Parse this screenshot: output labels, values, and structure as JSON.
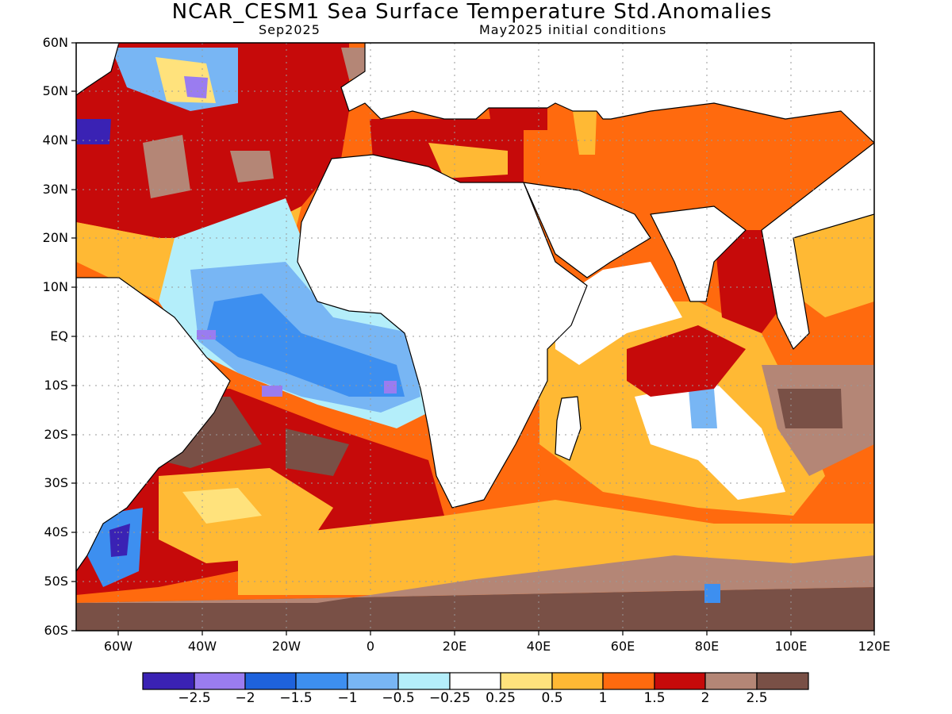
{
  "title": "NCAR_CESM1 Sea Surface Temperature Std.Anomalies",
  "valid_time": "Sep2025",
  "initial_conditions": "May2025 initial conditions",
  "map": {
    "lon_range": [
      -70,
      120
    ],
    "lat_range": [
      -60,
      60
    ],
    "lat_ticks": [
      "60N",
      "50N",
      "40N",
      "30N",
      "20N",
      "10N",
      "EQ",
      "10S",
      "20S",
      "30S",
      "40S",
      "50S",
      "60S"
    ],
    "lon_ticks": [
      "60W",
      "40W",
      "20W",
      "0",
      "20E",
      "40E",
      "60E",
      "80E",
      "100E",
      "120E"
    ],
    "land_color": "#ffffff",
    "grid": "dotted"
  },
  "colorbar": {
    "colors": [
      "#3a22b4",
      "#9a7cf0",
      "#1e62dc",
      "#3d8ff0",
      "#78b6f4",
      "#b4eefa",
      "#ffffff",
      "#ffe27c",
      "#ffb934",
      "#ff6a0e",
      "#c60a0a",
      "#b48676",
      "#795046"
    ],
    "labels": [
      "−2.5",
      "−2",
      "−1.5",
      "−1",
      "−0.5",
      "−0.25",
      "0.25",
      "0.5",
      "1",
      "1.5",
      "2",
      "2.5"
    ]
  }
}
